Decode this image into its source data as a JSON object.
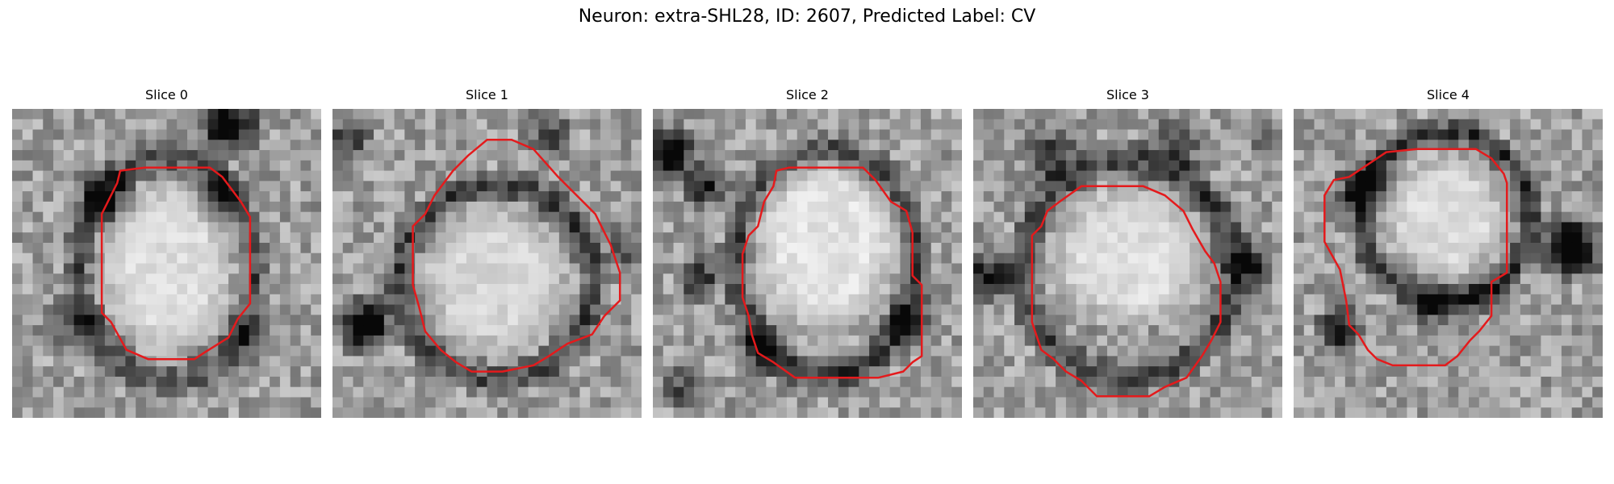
{
  "figure": {
    "title": "Neuron: extra-SHL28, ID: 2607, Predicted Label: CV"
  },
  "contour_color": "#e41a1c",
  "panels": [
    {
      "title": "Slice 0"
    },
    {
      "title": "Slice 1"
    },
    {
      "title": "Slice 2"
    },
    {
      "title": "Slice 3"
    },
    {
      "title": "Slice 4"
    }
  ]
}
